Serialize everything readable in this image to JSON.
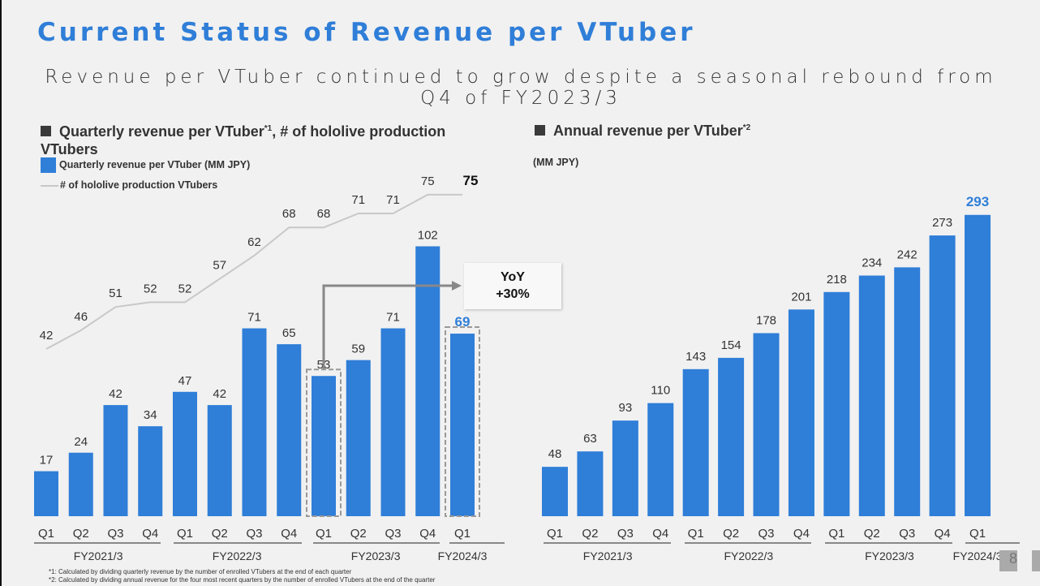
{
  "title": "Current Status of Revenue per VTuber",
  "subtitle": "Revenue per VTuber continued to grow despite a seasonal rebound from Q4 of FY2023/3",
  "left_section": {
    "heading": "Quarterly revenue per VTuber",
    "heading_sup": "*1",
    "heading_rest": ", # of hololive production VTubers"
  },
  "right_section": {
    "heading": "Annual revenue per VTuber",
    "heading_sup": "*2",
    "unit": "(MM JPY)"
  },
  "callout": {
    "line1": "YoY",
    "line2": "+30%"
  },
  "footnotes": [
    "*1: Calculated by dividing quarterly revenue by the number of enrolled VTubers at the end of each quarter",
    "*2: Calculated by dividing annual revenue for the four most recent quarters by the number of enrolled VTubers at the end of the quarter"
  ],
  "page_number": "8",
  "colors": {
    "bar": "#2f7ed8",
    "line": "#c8c8c8",
    "highlight": "#2f7ed8"
  },
  "chart_data": [
    {
      "type": "bar+line",
      "legend": [
        "Quarterly revenue per VTuber (MM JPY)",
        "# of hololive production VTubers"
      ],
      "categories": [
        "Q1",
        "Q2",
        "Q3",
        "Q4",
        "Q1",
        "Q2",
        "Q3",
        "Q4",
        "Q1",
        "Q2",
        "Q3",
        "Q4",
        "Q1"
      ],
      "groups": [
        {
          "label": "FY2021/3",
          "n": 4
        },
        {
          "label": "FY2022/3",
          "n": 4
        },
        {
          "label": "FY2023/3",
          "n": 4
        },
        {
          "label": "FY2024/3",
          "n": 1
        }
      ],
      "series": [
        {
          "name": "Quarterly revenue per VTuber (MM JPY)",
          "type": "bar",
          "values": [
            17,
            24,
            42,
            34,
            47,
            42,
            71,
            65,
            53,
            59,
            71,
            102,
            69
          ]
        },
        {
          "name": "# of hololive production VTubers",
          "type": "line",
          "values": [
            42,
            46,
            51,
            52,
            52,
            57,
            62,
            68,
            68,
            71,
            71,
            75,
            75
          ]
        }
      ]
    },
    {
      "type": "bar",
      "ylabel": "(MM JPY)",
      "categories": [
        "Q1",
        "Q2",
        "Q3",
        "Q4",
        "Q1",
        "Q2",
        "Q3",
        "Q4",
        "Q1",
        "Q2",
        "Q3",
        "Q4",
        "Q1"
      ],
      "groups": [
        {
          "label": "FY2021/3",
          "n": 4
        },
        {
          "label": "FY2022/3",
          "n": 4
        },
        {
          "label": "FY2023/3",
          "n": 4
        },
        {
          "label": "FY2024/3",
          "n": 1
        }
      ],
      "values": [
        48,
        63,
        93,
        110,
        143,
        154,
        178,
        201,
        218,
        234,
        242,
        273,
        293
      ]
    }
  ]
}
